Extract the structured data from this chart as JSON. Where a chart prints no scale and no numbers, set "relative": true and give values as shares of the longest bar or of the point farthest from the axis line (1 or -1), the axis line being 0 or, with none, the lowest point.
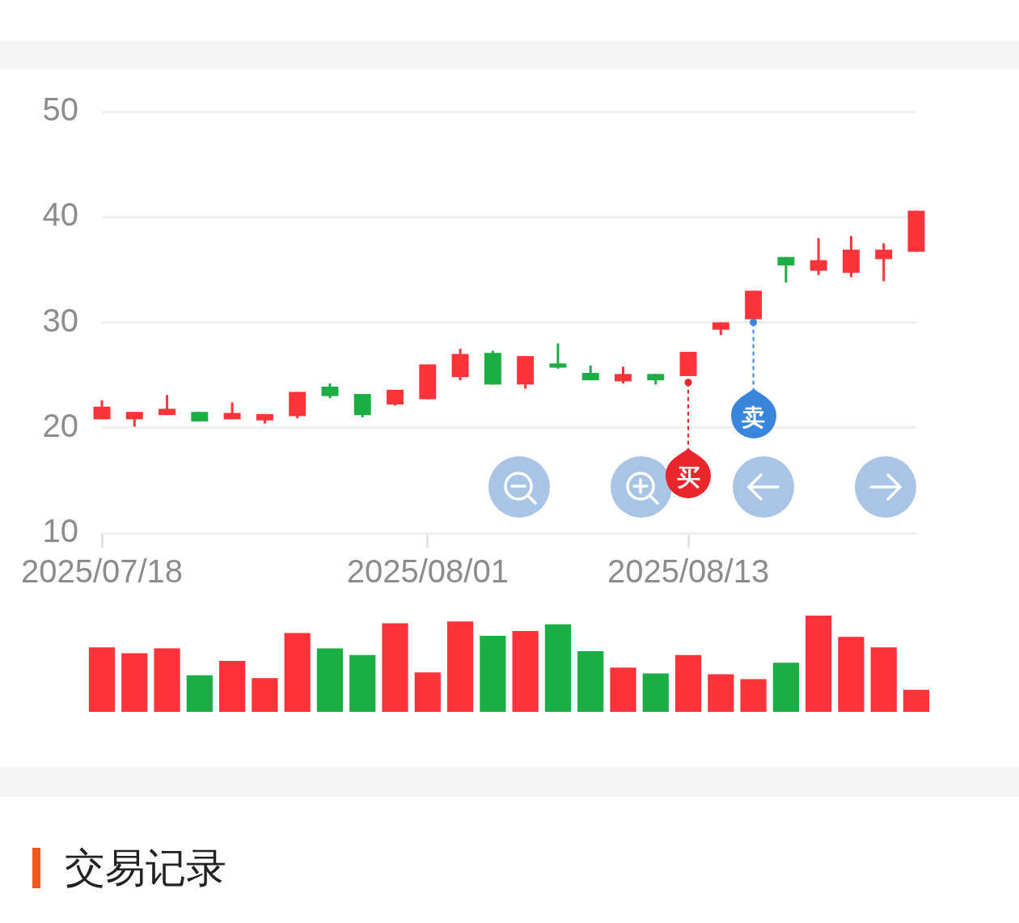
{
  "chart_data": [
    {
      "type": "candlestick",
      "categories": [
        "2025/07/18",
        null,
        null,
        null,
        null,
        null,
        null,
        null,
        null,
        null,
        "2025/08/01",
        null,
        null,
        null,
        null,
        null,
        null,
        null,
        "2025/08/13",
        null,
        null,
        null,
        null,
        null,
        null,
        null
      ],
      "ohlc": [
        [
          20.8,
          22.6,
          20.8,
          22.0
        ],
        [
          20.8,
          21.5,
          20.1,
          21.5
        ],
        [
          21.2,
          23.1,
          21.2,
          21.8
        ],
        [
          21.5,
          21.5,
          20.6,
          20.6
        ],
        [
          20.8,
          22.4,
          20.8,
          21.4
        ],
        [
          20.7,
          21.3,
          20.4,
          21.3
        ],
        [
          21.1,
          23.4,
          20.9,
          23.4
        ],
        [
          23.9,
          24.2,
          22.8,
          23.0
        ],
        [
          23.2,
          23.2,
          21.0,
          21.2
        ],
        [
          22.2,
          23.6,
          22.1,
          23.6
        ],
        [
          22.7,
          26.0,
          22.7,
          26.0
        ],
        [
          24.8,
          27.5,
          24.5,
          27.0
        ],
        [
          27.1,
          27.3,
          24.1,
          24.1
        ],
        [
          24.1,
          26.8,
          23.7,
          26.8
        ],
        [
          26.1,
          28.0,
          25.6,
          25.7
        ],
        [
          25.2,
          25.9,
          24.5,
          24.5
        ],
        [
          24.4,
          25.8,
          24.2,
          25.1
        ],
        [
          25.1,
          25.1,
          24.1,
          24.5
        ],
        [
          24.9,
          27.2,
          24.9,
          27.2
        ],
        [
          29.3,
          30.0,
          28.8,
          30.0
        ],
        [
          30.3,
          33.0,
          30.3,
          33.0
        ],
        [
          36.2,
          36.2,
          33.8,
          35.4
        ],
        [
          34.9,
          38.0,
          34.5,
          35.9
        ],
        [
          34.7,
          38.2,
          34.3,
          36.9
        ],
        [
          36.0,
          37.5,
          33.9,
          36.9
        ],
        [
          36.7,
          40.6,
          36.7,
          40.6
        ]
      ],
      "colors": [
        "#fc343a",
        "#fc343a",
        "#fc343a",
        "#1aae44",
        "#fc343a",
        "#fc343a",
        "#fc343a",
        "#1aae44",
        "#1aae44",
        "#fc343a",
        "#fc343a",
        "#fc343a",
        "#1aae44",
        "#fc343a",
        "#1aae44",
        "#1aae44",
        "#fc343a",
        "#1aae44",
        "#fc343a",
        "#fc343a",
        "#fc343a",
        "#1aae44",
        "#fc343a",
        "#fc343a",
        "#fc343a",
        "#fc343a"
      ],
      "ylim": [
        10,
        50
      ],
      "yticks": [
        10,
        20,
        30,
        40,
        50
      ],
      "grid": "y",
      "annotations": [
        {
          "text": "买",
          "x": "2025/08/13",
          "y": 24.3
        },
        {
          "text": "卖",
          "y": 30.0
        },
        "交易记录"
      ]
    },
    {
      "type": "bar",
      "relative": true,
      "categories": [
        null,
        null,
        null,
        null,
        null,
        null,
        null,
        null,
        null,
        null,
        null,
        null,
        null,
        null,
        null,
        null,
        null,
        null,
        null,
        null,
        null,
        null,
        null,
        null,
        null,
        null
      ],
      "values": [
        0.67,
        0.61,
        0.66,
        0.38,
        0.53,
        0.35,
        0.82,
        0.66,
        0.59,
        0.92,
        0.41,
        0.94,
        0.79,
        0.84,
        0.91,
        0.63,
        0.46,
        0.4,
        0.59,
        0.39,
        0.34,
        0.51,
        1,
        0.78,
        0.67,
        0.23
      ],
      "colors": [
        "#fc343a",
        "#fc343a",
        "#fc343a",
        "#1aae44",
        "#fc343a",
        "#fc343a",
        "#fc343a",
        "#1aae44",
        "#1aae44",
        "#fc343a",
        "#fc343a",
        "#fc343a",
        "#1aae44",
        "#fc343a",
        "#1aae44",
        "#1aae44",
        "#fc343a",
        "#1aae44",
        "#fc343a",
        "#fc343a",
        "#fc343a",
        "#1aae44",
        "#fc343a",
        "#fc343a",
        "#fc343a",
        "#fc343a"
      ]
    }
  ]
}
